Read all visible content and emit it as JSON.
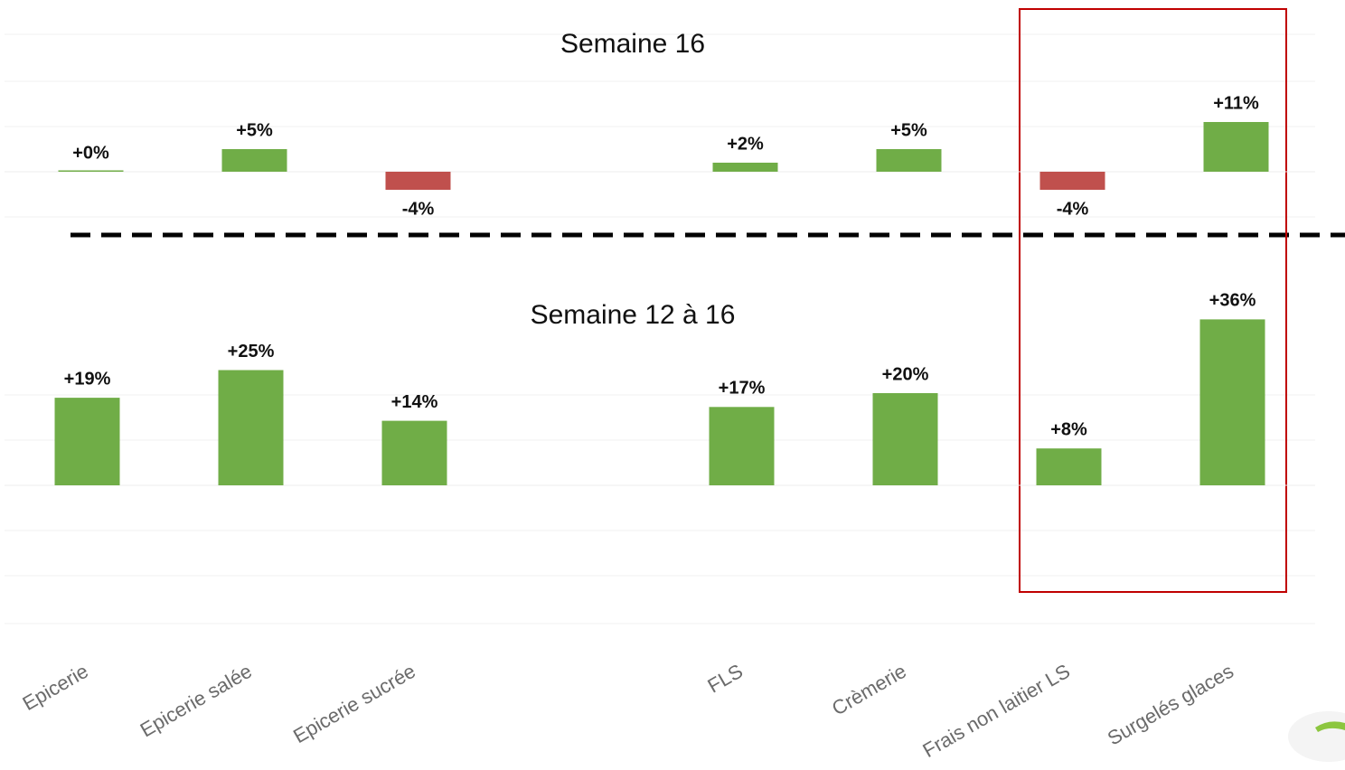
{
  "chart_data": [
    {
      "type": "bar",
      "title": "Semaine 16",
      "values": [
        0,
        5,
        -4,
        null,
        2,
        5,
        -4,
        11
      ],
      "value_labels": [
        "+0%",
        "+5%",
        "-4%",
        null,
        "+2%",
        "+5%",
        "-4%",
        "+11%"
      ],
      "color": "#70ad47",
      "negative_color": "#c0504d",
      "ylim": [
        -10,
        30
      ]
    },
    {
      "type": "bar",
      "title": "Semaine 12 à 16",
      "categories": [
        "Epicerie",
        "Epicerie salée",
        "Epicerie sucrée",
        null,
        "FLS",
        "Crèmerie",
        "Frais non laitier LS",
        "Surgelés glaces"
      ],
      "values": [
        19,
        25,
        14,
        null,
        17,
        20,
        8,
        36
      ],
      "value_labels": [
        "+19%",
        "+25%",
        "+14%",
        null,
        "+17%",
        "+20%",
        "+8%",
        "+36%"
      ],
      "color": "#70ad47",
      "negative_color": "#c0504d",
      "ylim": [
        -30,
        40
      ]
    }
  ]
}
